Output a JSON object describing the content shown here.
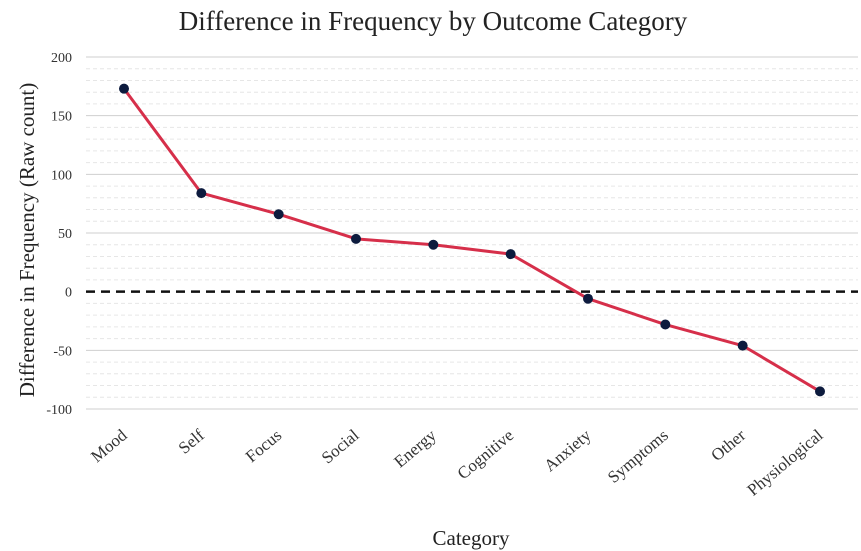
{
  "chart_data": {
    "type": "line",
    "title": "Difference in Frequency by Outcome Category",
    "xlabel": "Category",
    "ylabel": "Difference in Frequency (Raw count)",
    "categories": [
      "Mood",
      "Self",
      "Focus",
      "Social",
      "Energy",
      "Cognitive",
      "Anxiety",
      "Symptoms",
      "Other",
      "Physiological"
    ],
    "series": [
      {
        "values": [
          173,
          84,
          66,
          45,
          40,
          32,
          -6,
          -28,
          -46,
          -85
        ]
      }
    ],
    "ylim": [
      -100,
      200
    ],
    "yticks": [
      -100,
      -50,
      0,
      50,
      100,
      150,
      200
    ],
    "reference_line": 0,
    "grid": true,
    "colors": {
      "line": "#d62f4a",
      "marker": "#0d1b3e",
      "reference": "#111111",
      "grid_major": "#cfcfcf",
      "grid_minor": "#e6e6e6"
    }
  }
}
